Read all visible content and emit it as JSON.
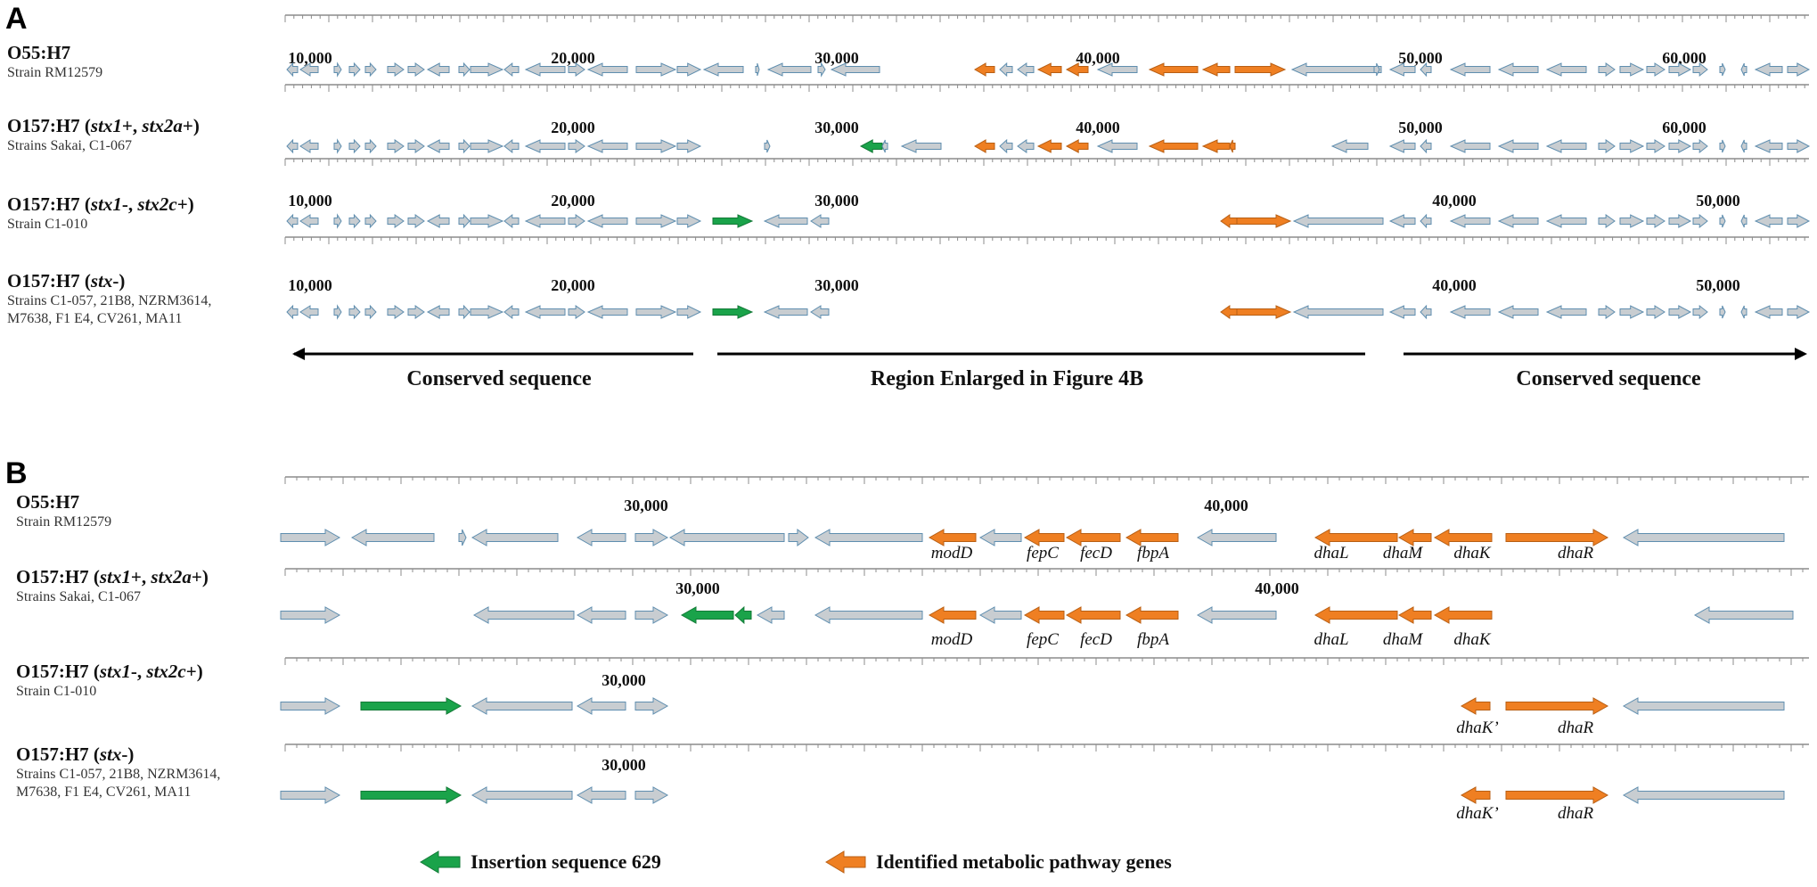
{
  "colors": {
    "conserved": "#c8cdd1",
    "conserved_stroke": "#5f8eaf",
    "insertion": "#1aa34a",
    "metabolic": "#ef7f22",
    "ruler": "#8c8c8c"
  },
  "panel_a": {
    "letter": "A",
    "tracks": [
      {
        "name_plain": "O55:H7",
        "name_genes": [],
        "name_suffix": "",
        "sub": "Strain RM12579",
        "ticks": [
          "10,000",
          "20,000",
          "30,000",
          "40,000",
          "50,000",
          "60,000"
        ]
      },
      {
        "name_plain": "O157:H7 (",
        "name_genes": [
          "stx1",
          "+, ",
          "stx2a",
          "+)"
        ],
        "name_suffix": "",
        "sub": "Strains Sakai, C1-067",
        "ticks": [
          "20,000",
          "30,000",
          "40,000",
          "50,000",
          "60,000"
        ]
      },
      {
        "name_plain": "O157:H7 (",
        "name_genes": [
          "stx1",
          "-, ",
          "stx2c",
          "+)"
        ],
        "name_suffix": "",
        "sub": "Strain C1-010",
        "ticks": [
          "10,000",
          "20,000",
          "30,000",
          "40,000",
          "50,000"
        ]
      },
      {
        "name_plain": "O157:H7 (",
        "name_genes": [
          "stx",
          "-)"
        ],
        "name_suffix": "",
        "sub": "Strains C1-057, 21B8, NZRM3614, M7638, F1 E4, CV261, MA11",
        "ticks": [
          "10,000",
          "20,000",
          "30,000",
          "40,000",
          "50,000"
        ]
      }
    ],
    "regions": [
      "Conserved sequence",
      "Region Enlarged in Figure 4B",
      "Conserved sequence"
    ]
  },
  "panel_b": {
    "letter": "B",
    "tracks": [
      {
        "name_plain": "O55:H7",
        "name_genes": [],
        "sub": "Strain RM12579",
        "ticks": [
          "30,000",
          "40,000"
        ],
        "genes": [
          "modD",
          "fepC",
          "fecD",
          "fbpA",
          "dhaL",
          "dhaM",
          "dhaK",
          "dhaR"
        ]
      },
      {
        "name_plain": "O157:H7 (",
        "name_genes": [
          "stx1",
          "+, ",
          "stx2a",
          "+)"
        ],
        "sub": "Strains Sakai, C1-067",
        "ticks": [
          "30,000",
          "40,000"
        ],
        "genes": [
          "modD",
          "fepC",
          "fecD",
          "fbpA",
          "dhaL",
          "dhaM",
          "dhaK"
        ]
      },
      {
        "name_plain": "O157:H7 (",
        "name_genes": [
          "stx1",
          "-, ",
          "stx2c",
          "+)"
        ],
        "sub": "Strain C1-010",
        "ticks": [
          "30,000"
        ],
        "genes": [
          "dhaK’",
          "dhaR"
        ]
      },
      {
        "name_plain": "O157:H7 (",
        "name_genes": [
          "stx",
          "-)"
        ],
        "sub": "Strains C1-057, 21B8, NZRM3614, M7638, F1 E4, CV261, MA11",
        "ticks": [
          "30,000"
        ],
        "genes": [
          "dhaK’",
          "dhaR"
        ]
      }
    ]
  },
  "legend": {
    "insertion": "Insertion sequence 629",
    "metabolic": "Identified metabolic pathway genes"
  }
}
